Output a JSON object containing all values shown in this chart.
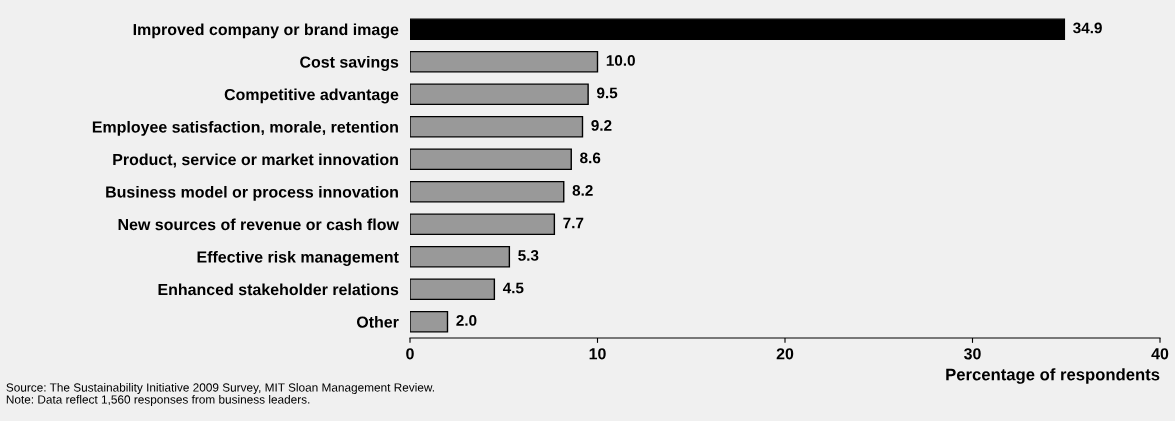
{
  "chart_data": {
    "type": "bar",
    "orientation": "horizontal",
    "categories": [
      "Improved company or brand image",
      "Cost savings",
      "Competitive advantage",
      "Employee satisfaction, morale, retention",
      "Product, service or market innovation",
      "Business model or process innovation",
      "New sources of revenue or cash flow",
      "Effective risk management",
      "Enhanced stakeholder relations",
      "Other"
    ],
    "values": [
      34.9,
      10.0,
      9.5,
      9.2,
      8.6,
      8.2,
      7.7,
      5.3,
      4.5,
      2.0
    ],
    "colors": [
      "#000000",
      "#999999",
      "#999999",
      "#999999",
      "#999999",
      "#999999",
      "#999999",
      "#999999",
      "#999999",
      "#999999"
    ],
    "value_labels": [
      "34.9",
      "10.0",
      "9.5",
      "9.2",
      "8.6",
      "8.2",
      "7.7",
      "5.3",
      "4.5",
      "2.0"
    ],
    "xlabel": "Percentage of respondents",
    "xlim": [
      0,
      40
    ],
    "xticks": [
      0,
      10,
      20,
      30,
      40
    ],
    "grid": false,
    "annotations": [
      "Source: The Sustainability Initiative 2009 Survey, MIT Sloan Management Review.",
      "Note: Data reflect 1,560 responses from business leaders."
    ]
  }
}
